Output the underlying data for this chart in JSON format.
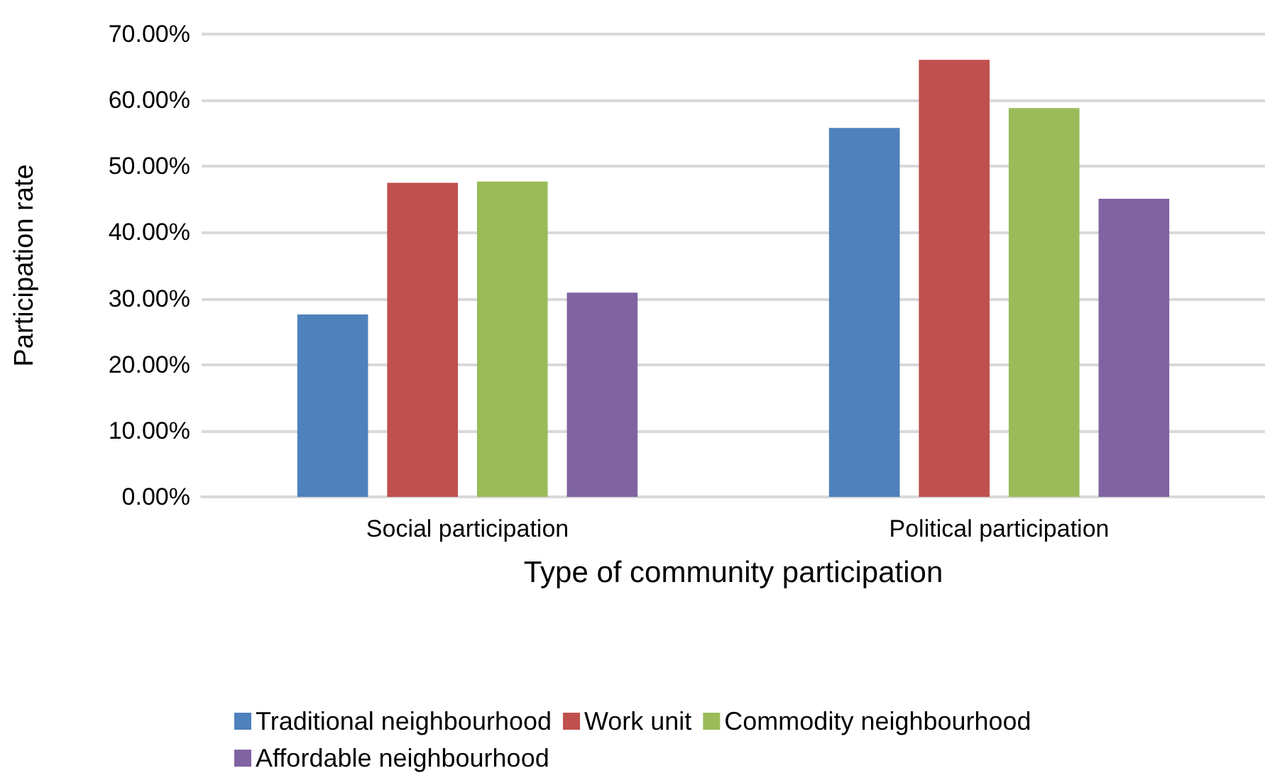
{
  "chart_data": {
    "type": "bar",
    "xlabel": "Type of community participation",
    "ylabel": "Participation rate",
    "categories": [
      "Social participation",
      "Political participation"
    ],
    "series": [
      {
        "name": "Traditional neighbourhood",
        "color": "#4f81bd",
        "values": [
          27.6,
          55.8
        ]
      },
      {
        "name": "Work unit",
        "color": "#c0504d",
        "values": [
          47.5,
          66.1
        ]
      },
      {
        "name": "Commodity neighbourhood",
        "color": "#9bbb59",
        "values": [
          47.7,
          58.8
        ]
      },
      {
        "name": "Affordable neighbourhood",
        "color": "#8064a2",
        "values": [
          30.9,
          45.1
        ]
      }
    ],
    "ylim": [
      0,
      70
    ],
    "yticks": [
      {
        "value": 0,
        "label": "0.00%"
      },
      {
        "value": 10,
        "label": "10.00%"
      },
      {
        "value": 20,
        "label": "20.00%"
      },
      {
        "value": 30,
        "label": "30.00%"
      },
      {
        "value": 40,
        "label": "40.00%"
      },
      {
        "value": 50,
        "label": "50.00%"
      },
      {
        "value": 60,
        "label": "60.00%"
      },
      {
        "value": 70,
        "label": "70.00%"
      }
    ],
    "grid": "y",
    "legend": "bottom"
  }
}
